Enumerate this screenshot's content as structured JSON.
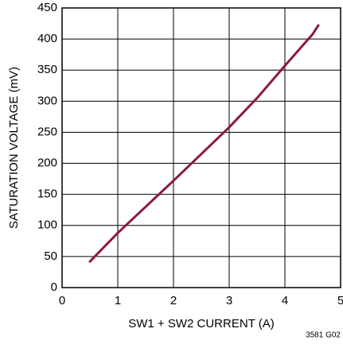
{
  "chart_data": {
    "type": "line",
    "x_label": "SW1 + SW2 CURRENT (A)",
    "y_label": "SATURATION VOLTAGE (mV)",
    "note": "3581 G02",
    "x": [
      0.5,
      1,
      1.5,
      2,
      2.5,
      3,
      3.5,
      4,
      4.5,
      4.6
    ],
    "series": [
      {
        "name": "Saturation voltage",
        "color": "#8b1a3c",
        "values": [
          42,
          88,
          130,
          172,
          215,
          258,
          305,
          357,
          408,
          422
        ]
      }
    ],
    "xlim": [
      0,
      5
    ],
    "xticks": [
      0,
      1,
      2,
      3,
      4,
      5
    ],
    "ylim": [
      0,
      450
    ],
    "yticks": [
      0,
      50,
      100,
      150,
      200,
      250,
      300,
      350,
      400,
      450
    ],
    "grid": true
  }
}
